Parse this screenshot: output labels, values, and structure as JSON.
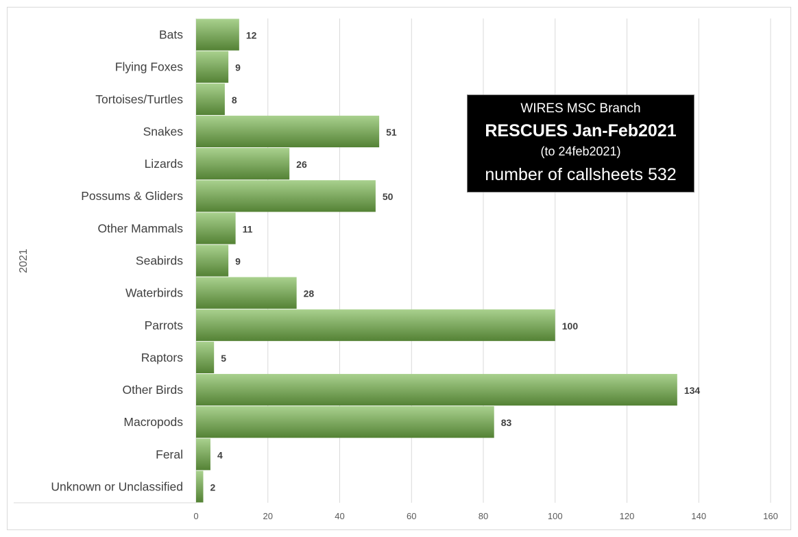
{
  "chart_data": {
    "type": "bar",
    "orientation": "horizontal",
    "categories": [
      "Bats",
      "Flying Foxes",
      "Tortoises/Turtles",
      "Snakes",
      "Lizards",
      "Possums & Gliders",
      "Other Mammals",
      "Seabirds",
      "Waterbirds",
      "Parrots",
      "Raptors",
      "Other Birds",
      "Macropods",
      "Feral",
      "Unknown or Unclassified"
    ],
    "values": [
      12,
      9,
      8,
      51,
      26,
      50,
      11,
      9,
      28,
      100,
      5,
      134,
      83,
      4,
      2
    ],
    "xlim": [
      0,
      160
    ],
    "xticks": [
      0,
      20,
      40,
      60,
      80,
      100,
      120,
      140,
      160
    ],
    "ylabel": "2021",
    "grid": "vertical",
    "bar_color_top": "#a9d18e",
    "bar_color_bottom": "#548235",
    "title_box": {
      "line1": "WIRES MSC Branch",
      "line2": "RESCUES Jan-Feb2021",
      "line3": "(to 24feb2021)",
      "line4": "number of callsheets 532"
    }
  }
}
